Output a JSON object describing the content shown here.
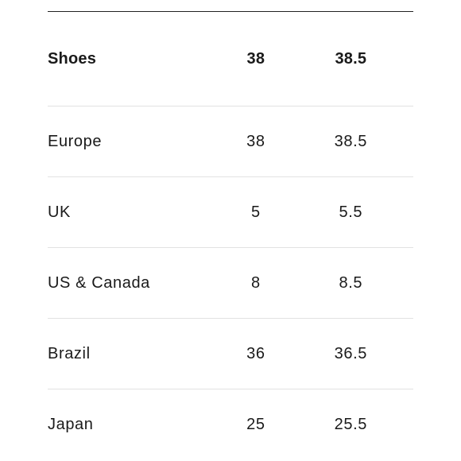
{
  "table": {
    "header": {
      "label": "Shoes",
      "col1": "38",
      "col2": "38.5"
    },
    "rows": [
      {
        "label": "Europe",
        "col1": "38",
        "col2": "38.5"
      },
      {
        "label": "UK",
        "col1": "5",
        "col2": "5.5"
      },
      {
        "label": "US & Canada",
        "col1": "8",
        "col2": "8.5"
      },
      {
        "label": "Brazil",
        "col1": "36",
        "col2": "36.5"
      },
      {
        "label": "Japan",
        "col1": "25",
        "col2": "25.5"
      }
    ]
  }
}
